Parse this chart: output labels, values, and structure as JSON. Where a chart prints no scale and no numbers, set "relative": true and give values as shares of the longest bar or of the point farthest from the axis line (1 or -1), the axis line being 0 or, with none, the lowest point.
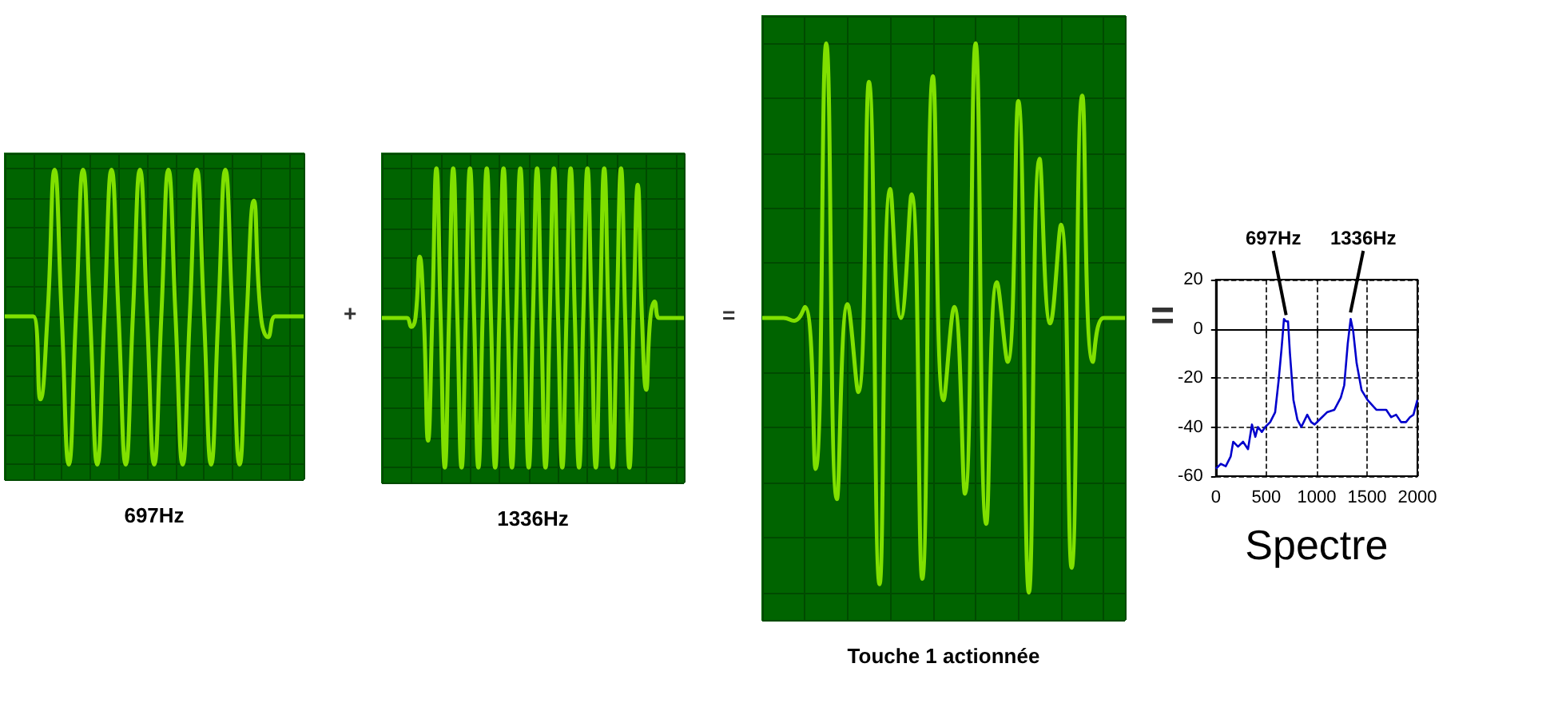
{
  "chart_data": [
    {
      "type": "line",
      "relative": true,
      "grid": true,
      "color": "#80e000",
      "xlabel": "697Hz",
      "annotations": [
        "+"
      ],
      "categories": [
        null,
        null,
        null,
        null,
        null,
        null,
        null,
        null,
        null,
        null,
        null,
        null,
        null,
        null,
        null,
        null,
        null,
        null,
        null,
        null,
        null,
        null,
        null,
        null,
        null,
        null,
        null,
        null,
        null,
        null,
        null,
        null,
        null,
        null,
        null,
        null,
        null,
        null,
        null,
        null,
        null,
        null,
        null
      ],
      "values": [
        0,
        0,
        0,
        0,
        0,
        -0.56,
        0,
        0.99,
        0,
        -1,
        0,
        0.99,
        0,
        -1,
        0,
        0.99,
        0,
        -1,
        0,
        0.99,
        0,
        -1,
        0,
        0.99,
        0,
        -1,
        0,
        0.99,
        0,
        -1,
        0,
        0.99,
        0,
        -1,
        0,
        0.78,
        0,
        -0.14,
        0,
        0,
        0,
        0,
        0
      ]
    },
    {
      "type": "line",
      "relative": true,
      "grid": true,
      "color": "#80e000",
      "xlabel": "1336Hz",
      "annotations": [
        "="
      ],
      "categories": [
        null,
        null,
        null,
        null,
        null,
        null,
        null,
        null,
        null,
        null,
        null,
        null,
        null,
        null,
        null,
        null,
        null,
        null,
        null,
        null,
        null,
        null,
        null,
        null,
        null,
        null,
        null,
        null,
        null,
        null,
        null,
        null,
        null,
        null,
        null,
        null,
        null,
        null,
        null,
        null,
        null,
        null,
        null,
        null,
        null,
        null,
        null,
        null,
        null,
        null,
        null,
        null,
        null,
        null,
        null,
        null,
        null,
        null,
        null,
        null,
        null,
        null,
        null,
        null,
        null,
        null,
        null,
        null,
        null,
        null,
        null,
        null,
        null
      ],
      "values": [
        0,
        0,
        0,
        0,
        0,
        0,
        0,
        -0.06,
        0,
        0.41,
        0,
        -0.82,
        0,
        1,
        0,
        -1,
        0,
        1,
        0,
        -1,
        0,
        1,
        0,
        -1,
        0,
        1,
        0,
        -1,
        0,
        1,
        0,
        -1,
        0,
        1,
        0,
        -1,
        0,
        1,
        0,
        -1,
        0,
        1,
        0,
        -1,
        0,
        1,
        0,
        -1,
        0,
        1,
        0,
        -1,
        0,
        1,
        0,
        -1,
        0,
        1,
        0,
        -1,
        0,
        0.89,
        0,
        -0.48,
        0,
        0.11,
        0,
        0,
        0,
        0,
        0,
        0,
        0
      ]
    },
    {
      "type": "line",
      "relative": true,
      "grid": true,
      "color": "#80e000",
      "xlabel": "Touche 1 actionnée",
      "annotations": [
        "="
      ],
      "categories": [
        null,
        null,
        null,
        null,
        null,
        null,
        null,
        null,
        null,
        null,
        null,
        null,
        null,
        null,
        null,
        null,
        null,
        null,
        null,
        null,
        null,
        null,
        null,
        null,
        null,
        null,
        null,
        null,
        null,
        null,
        null,
        null,
        null,
        null,
        null
      ],
      "values": [
        0,
        0,
        0,
        -0.01,
        0.04,
        -0.55,
        1.0,
        -0.66,
        0.05,
        -0.27,
        0.86,
        -0.97,
        0.47,
        0.0,
        0.45,
        -0.95,
        0.88,
        -0.3,
        0.04,
        -0.64,
        1.0,
        -0.75,
        0.13,
        -0.16,
        0.79,
        -1.0,
        0.58,
        -0.02,
        0.34,
        -0.91,
        0.81,
        -0.16,
        0,
        0,
        0
      ]
    },
    {
      "type": "line",
      "grid": true,
      "color": "#0000cc",
      "xlabel": "Spectre",
      "xlim": [
        0,
        2000
      ],
      "xticks": [
        0,
        500,
        1000,
        1500,
        2000
      ],
      "ylim": [
        -60,
        20
      ],
      "yticks": [
        -60,
        -40,
        -20,
        0,
        20
      ],
      "annotations": [
        {
          "text": "697Hz",
          "x": 697,
          "y": 3
        },
        {
          "text": "1336Hz",
          "x": 1336,
          "y": 4
        }
      ],
      "x": [
        0,
        49,
        98,
        147,
        172,
        220,
        270,
        319,
        358,
        392,
        417,
        456,
        490,
        539,
        588,
        623,
        652,
        676,
        696,
        716,
        735,
        770,
        809,
        848,
        907,
        946,
        980,
        1029,
        1103,
        1176,
        1240,
        1274,
        1309,
        1338,
        1363,
        1397,
        1446,
        1505,
        1593,
        1691,
        1740,
        1789,
        1838,
        1887,
        1926,
        1961,
        2000
      ],
      "values": [
        -57,
        -55,
        -56,
        -52,
        -46,
        -48,
        -46,
        -49,
        -39,
        -44,
        -40,
        -42,
        -40,
        -38,
        -34,
        -21,
        -8,
        4,
        3,
        3,
        -10,
        -29,
        -37,
        -40,
        -35,
        -38,
        -39,
        -37,
        -34,
        -33,
        -28,
        -23,
        -6,
        4,
        -1,
        -14,
        -25,
        -29,
        -33,
        -33,
        -36,
        -35,
        -38,
        -38,
        -36,
        -35,
        -29
      ]
    }
  ]
}
